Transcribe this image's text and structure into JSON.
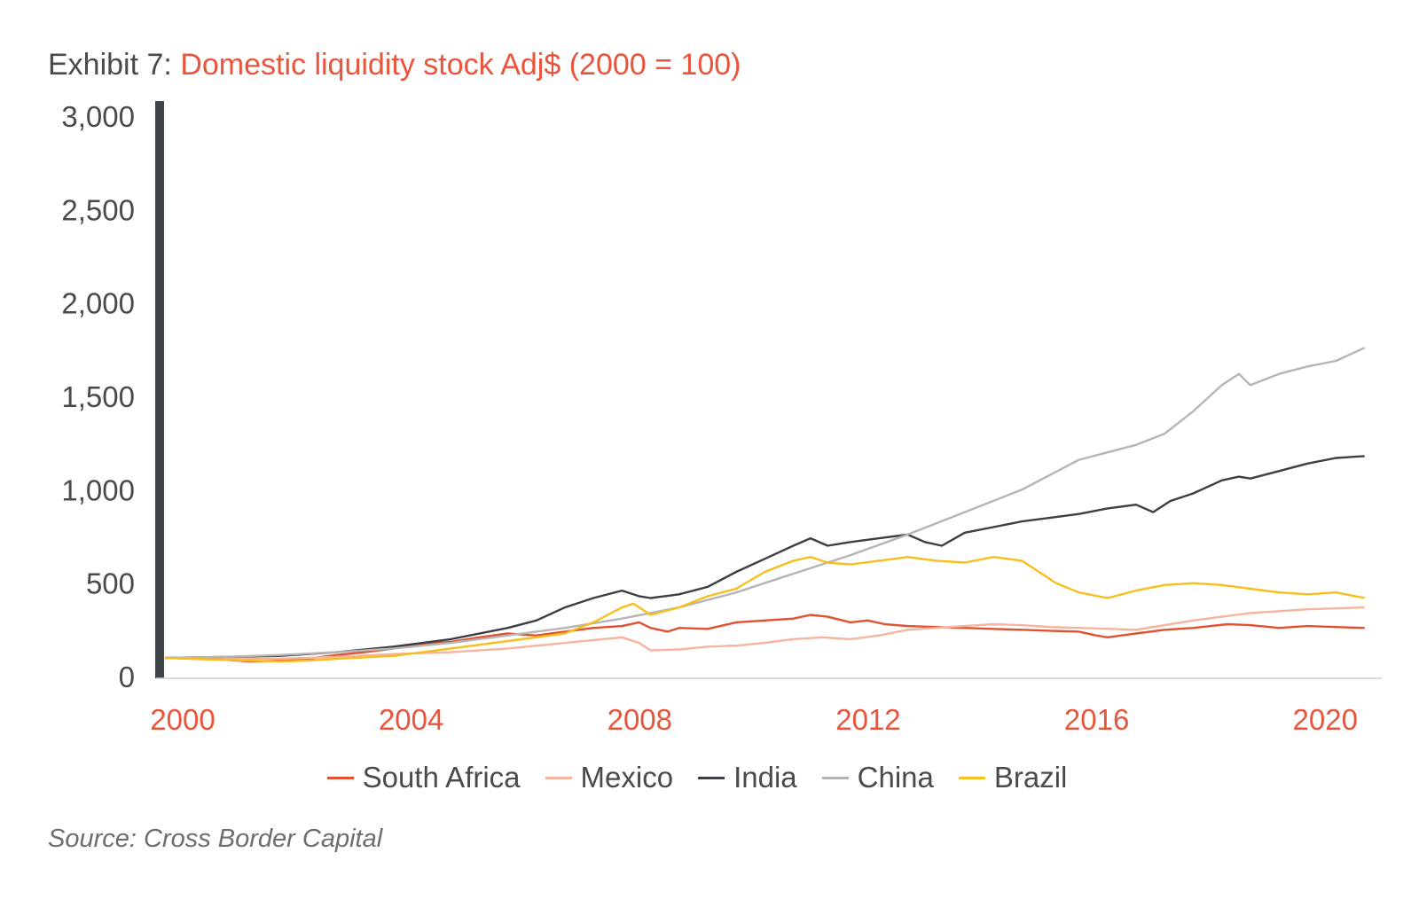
{
  "header": {
    "exhibit_prefix": "Exhibit 7: ",
    "title": "Domestic liquidity stock Adj$ (2000 = 100)"
  },
  "footer": {
    "source": "Source: Cross Border Capital"
  },
  "colors": {
    "accent": "#e8553b",
    "axis_bar": "#3f4448",
    "South Africa": "#e2502f",
    "Mexico": "#f6b39e",
    "India": "#3b3f43",
    "China": "#b5b5b5",
    "Brazil": "#f7bf1c"
  },
  "chart_data": {
    "type": "line",
    "title": "Domestic liquidity stock Adj$ (2000 = 100)",
    "xlabel": "",
    "ylabel": "",
    "xlim": [
      2000,
      2021.3
    ],
    "ylim": [
      0,
      3000
    ],
    "x_ticks": [
      2000,
      2004,
      2008,
      2012,
      2016,
      2020
    ],
    "y_ticks": [
      0,
      500,
      1000,
      1500,
      2000,
      2500,
      3000
    ],
    "y_tick_labels": [
      "0",
      "500",
      "1,000",
      "1,500",
      "2,000",
      "2,500",
      "3,000"
    ],
    "grid": false,
    "legend_position": "bottom",
    "series": [
      {
        "name": "South Africa",
        "x": [
          2000,
          2000.5,
          2001,
          2001.5,
          2002,
          2002.5,
          2003,
          2003.5,
          2004,
          2004.5,
          2005,
          2005.5,
          2006,
          2006.5,
          2007,
          2007.5,
          2008,
          2008.3,
          2008.5,
          2008.8,
          2009,
          2009.5,
          2010,
          2010.5,
          2011,
          2011.3,
          2011.6,
          2012,
          2012.3,
          2012.6,
          2013,
          2013.5,
          2014,
          2014.5,
          2015,
          2015.5,
          2016,
          2016.3,
          2016.5,
          2017,
          2017.5,
          2018,
          2018.3,
          2018.6,
          2019,
          2019.5,
          2020,
          2020.5,
          2021
        ],
        "y": [
          100,
          95,
          90,
          80,
          85,
          95,
          115,
          130,
          150,
          175,
          185,
          210,
          230,
          220,
          240,
          260,
          270,
          290,
          260,
          240,
          260,
          255,
          290,
          300,
          310,
          330,
          320,
          290,
          300,
          280,
          270,
          265,
          260,
          255,
          250,
          245,
          240,
          220,
          210,
          230,
          250,
          260,
          270,
          280,
          275,
          260,
          270,
          265,
          260
        ]
      },
      {
        "name": "Mexico",
        "x": [
          2000,
          2001,
          2002,
          2003,
          2004,
          2005,
          2006,
          2007,
          2007.5,
          2008,
          2008.3,
          2008.5,
          2009,
          2009.5,
          2010,
          2010.5,
          2011,
          2011.5,
          2012,
          2012.5,
          2013,
          2014,
          2014.5,
          2015,
          2015.5,
          2016,
          2017,
          2018,
          2018.5,
          2019,
          2020,
          2021
        ],
        "y": [
          100,
          95,
          95,
          105,
          120,
          130,
          150,
          180,
          195,
          210,
          180,
          140,
          145,
          160,
          165,
          180,
          200,
          210,
          200,
          220,
          250,
          270,
          280,
          275,
          265,
          260,
          250,
          300,
          320,
          340,
          360,
          370
        ]
      },
      {
        "name": "India",
        "x": [
          2000,
          2001,
          2002,
          2003,
          2004,
          2005,
          2006,
          2006.5,
          2007,
          2007.5,
          2008,
          2008.3,
          2008.5,
          2009,
          2009.5,
          2010,
          2010.5,
          2011,
          2011.3,
          2011.6,
          2012,
          2012.5,
          2013,
          2013.3,
          2013.6,
          2014,
          2014.5,
          2015,
          2015.5,
          2016,
          2016.5,
          2017,
          2017.3,
          2017.6,
          2018,
          2018.5,
          2018.8,
          2019,
          2019.5,
          2020,
          2020.5,
          2021
        ],
        "y": [
          100,
          105,
          110,
          130,
          160,
          200,
          260,
          300,
          370,
          420,
          460,
          430,
          420,
          440,
          480,
          560,
          630,
          700,
          740,
          700,
          720,
          740,
          760,
          720,
          700,
          770,
          800,
          830,
          850,
          870,
          900,
          920,
          880,
          940,
          980,
          1050,
          1070,
          1060,
          1100,
          1140,
          1170,
          1180
        ]
      },
      {
        "name": "China",
        "x": [
          2000,
          2001,
          2002,
          2003,
          2004,
          2005,
          2006,
          2007,
          2008,
          2009,
          2010,
          2011,
          2012,
          2013,
          2014,
          2015,
          2016,
          2016.5,
          2017,
          2017.5,
          2018,
          2018.5,
          2018.8,
          2019,
          2019.5,
          2020,
          2020.5,
          2021
        ],
        "y": [
          100,
          105,
          115,
          130,
          150,
          180,
          220,
          260,
          310,
          370,
          450,
          550,
          650,
          760,
          880,
          1000,
          1160,
          1200,
          1240,
          1300,
          1420,
          1560,
          1620,
          1560,
          1620,
          1660,
          1690,
          1760
        ]
      },
      {
        "name": "Brazil",
        "x": [
          2000,
          2001,
          2002,
          2002.5,
          2003,
          2004,
          2005,
          2006,
          2007,
          2007.5,
          2008,
          2008.2,
          2008.5,
          2009,
          2009.5,
          2010,
          2010.5,
          2011,
          2011.3,
          2011.6,
          2012,
          2012.5,
          2013,
          2013.5,
          2014,
          2014.5,
          2015,
          2015.3,
          2015.6,
          2016,
          2016.5,
          2017,
          2017.5,
          2018,
          2018.5,
          2019,
          2019.5,
          2020,
          2020.5,
          2021
        ],
        "y": [
          100,
          90,
          80,
          85,
          95,
          110,
          150,
          190,
          230,
          290,
          370,
          390,
          330,
          370,
          430,
          470,
          560,
          620,
          640,
          610,
          600,
          620,
          640,
          620,
          610,
          640,
          620,
          560,
          500,
          450,
          420,
          460,
          490,
          500,
          490,
          470,
          450,
          440,
          450,
          420
        ]
      }
    ]
  }
}
